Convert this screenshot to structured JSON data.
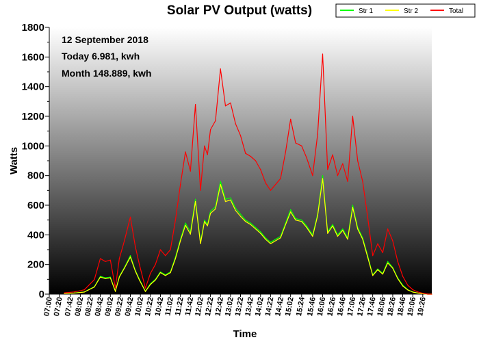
{
  "chart_data": {
    "type": "line",
    "title": "Solar PV Output (watts)",
    "xlabel": "Time",
    "ylabel": "Watts",
    "ylim": [
      0,
      1800
    ],
    "yticks": [
      0,
      200,
      400,
      600,
      800,
      1000,
      1200,
      1400,
      1600,
      1800
    ],
    "xlim": [
      "07:00",
      "19:44"
    ],
    "x_tick_labels": [
      "07:00",
      "07:20",
      "07:42",
      "08:02",
      "08:22",
      "08:42",
      "09:02",
      "09:22",
      "09:42",
      "10:02",
      "10:22",
      "10:42",
      "11:02",
      "11:22",
      "11:42",
      "12:02",
      "12:22",
      "12:42",
      "13:02",
      "13:22",
      "13:42",
      "14:02",
      "14:22",
      "14:42",
      "15:02",
      "15:24",
      "15:46",
      "16:06",
      "16:26",
      "16:46",
      "17:06",
      "17:26",
      "17:46",
      "18:06",
      "18:26",
      "18:46",
      "19:06",
      "19:26"
    ],
    "annotations": [
      "12 September 2018",
      "Today 6.981, kwh",
      "Month 148.889, kwh"
    ],
    "legend_position": "top-right",
    "background": "vertical gradient from white (top) to black (bottom)",
    "grid": false,
    "series": [
      {
        "name": "Str 1",
        "color": "#00ff00",
        "x": [
          "07:30",
          "07:50",
          "08:10",
          "08:30",
          "08:42",
          "08:52",
          "09:02",
          "09:12",
          "09:20",
          "09:30",
          "09:42",
          "09:52",
          "10:00",
          "10:12",
          "10:22",
          "10:32",
          "10:42",
          "10:52",
          "11:02",
          "11:12",
          "11:22",
          "11:32",
          "11:42",
          "11:52",
          "12:02",
          "12:10",
          "12:16",
          "12:22",
          "12:32",
          "12:42",
          "12:52",
          "13:02",
          "13:12",
          "13:22",
          "13:32",
          "13:42",
          "13:52",
          "14:02",
          "14:12",
          "14:22",
          "14:32",
          "14:42",
          "14:52",
          "15:02",
          "15:12",
          "15:24",
          "15:34",
          "15:46",
          "15:56",
          "16:06",
          "16:16",
          "16:26",
          "16:36",
          "16:46",
          "16:56",
          "17:06",
          "17:16",
          "17:26",
          "17:36",
          "17:46",
          "17:56",
          "18:06",
          "18:16",
          "18:26",
          "18:36",
          "18:46",
          "18:56",
          "19:06",
          "19:16",
          "19:26",
          "19:36",
          "19:44"
        ],
        "values": [
          5,
          8,
          15,
          50,
          120,
          110,
          115,
          20,
          120,
          180,
          260,
          160,
          100,
          20,
          70,
          100,
          150,
          130,
          150,
          250,
          370,
          480,
          420,
          640,
          350,
          500,
          470,
          560,
          590,
          760,
          640,
          650,
          580,
          540,
          500,
          480,
          450,
          420,
          380,
          350,
          370,
          390,
          480,
          570,
          510,
          500,
          460,
          400,
          540,
          800,
          420,
          470,
          400,
          440,
          380,
          600,
          450,
          380,
          260,
          130,
          170,
          140,
          220,
          180,
          110,
          60,
          30,
          15,
          8,
          3,
          0,
          0
        ]
      },
      {
        "name": "Str 2",
        "color": "#ffff00",
        "x": [
          "07:30",
          "07:50",
          "08:10",
          "08:30",
          "08:42",
          "08:52",
          "09:02",
          "09:12",
          "09:20",
          "09:30",
          "09:42",
          "09:52",
          "10:00",
          "10:12",
          "10:22",
          "10:32",
          "10:42",
          "10:52",
          "11:02",
          "11:12",
          "11:22",
          "11:32",
          "11:42",
          "11:52",
          "12:02",
          "12:10",
          "12:16",
          "12:22",
          "12:32",
          "12:42",
          "12:52",
          "13:02",
          "13:12",
          "13:22",
          "13:32",
          "13:42",
          "13:52",
          "14:02",
          "14:12",
          "14:22",
          "14:32",
          "14:42",
          "14:52",
          "15:02",
          "15:12",
          "15:24",
          "15:34",
          "15:46",
          "15:56",
          "16:06",
          "16:16",
          "16:26",
          "16:36",
          "16:46",
          "16:56",
          "17:06",
          "17:16",
          "17:26",
          "17:36",
          "17:46",
          "17:56",
          "18:06",
          "18:16",
          "18:26",
          "18:36",
          "18:46",
          "18:56",
          "19:06",
          "19:16",
          "19:26",
          "19:36",
          "19:44"
        ],
        "values": [
          4,
          7,
          14,
          48,
          115,
          105,
          110,
          18,
          115,
          175,
          250,
          155,
          95,
          18,
          65,
          95,
          145,
          125,
          145,
          240,
          360,
          465,
          405,
          625,
          340,
          490,
          460,
          545,
          575,
          740,
          625,
          635,
          565,
          525,
          490,
          470,
          440,
          410,
          370,
          340,
          360,
          380,
          470,
          555,
          500,
          490,
          450,
          390,
          530,
          780,
          410,
          460,
          390,
          430,
          370,
          585,
          440,
          370,
          250,
          125,
          165,
          135,
          210,
          175,
          105,
          55,
          28,
          14,
          7,
          3,
          0,
          0
        ]
      },
      {
        "name": "Total",
        "color": "#ff0000",
        "x": [
          "07:30",
          "07:50",
          "08:10",
          "08:30",
          "08:42",
          "08:52",
          "09:02",
          "09:12",
          "09:20",
          "09:30",
          "09:42",
          "09:52",
          "10:00",
          "10:12",
          "10:22",
          "10:32",
          "10:42",
          "10:52",
          "11:02",
          "11:12",
          "11:22",
          "11:32",
          "11:42",
          "11:52",
          "12:02",
          "12:10",
          "12:16",
          "12:22",
          "12:32",
          "12:42",
          "12:52",
          "13:02",
          "13:12",
          "13:22",
          "13:32",
          "13:42",
          "13:52",
          "14:02",
          "14:12",
          "14:22",
          "14:32",
          "14:42",
          "14:52",
          "15:02",
          "15:12",
          "15:24",
          "15:34",
          "15:46",
          "15:56",
          "16:06",
          "16:16",
          "16:26",
          "16:36",
          "16:46",
          "16:56",
          "17:06",
          "17:16",
          "17:26",
          "17:36",
          "17:46",
          "17:56",
          "18:06",
          "18:16",
          "18:26",
          "18:36",
          "18:46",
          "18:56",
          "19:06",
          "19:16",
          "19:26",
          "19:36",
          "19:44"
        ],
        "values": [
          9,
          15,
          29,
          98,
          240,
          220,
          230,
          40,
          240,
          360,
          520,
          320,
          200,
          40,
          140,
          200,
          300,
          260,
          300,
          500,
          740,
          960,
          830,
          1280,
          700,
          1000,
          940,
          1110,
          1170,
          1520,
          1270,
          1290,
          1150,
          1070,
          950,
          930,
          900,
          840,
          750,
          700,
          740,
          780,
          960,
          1180,
          1020,
          1000,
          920,
          800,
          1080,
          1620,
          840,
          940,
          800,
          880,
          760,
          1200,
          900,
          760,
          520,
          260,
          340,
          280,
          440,
          360,
          220,
          120,
          60,
          30,
          15,
          6,
          0,
          0
        ]
      }
    ]
  }
}
